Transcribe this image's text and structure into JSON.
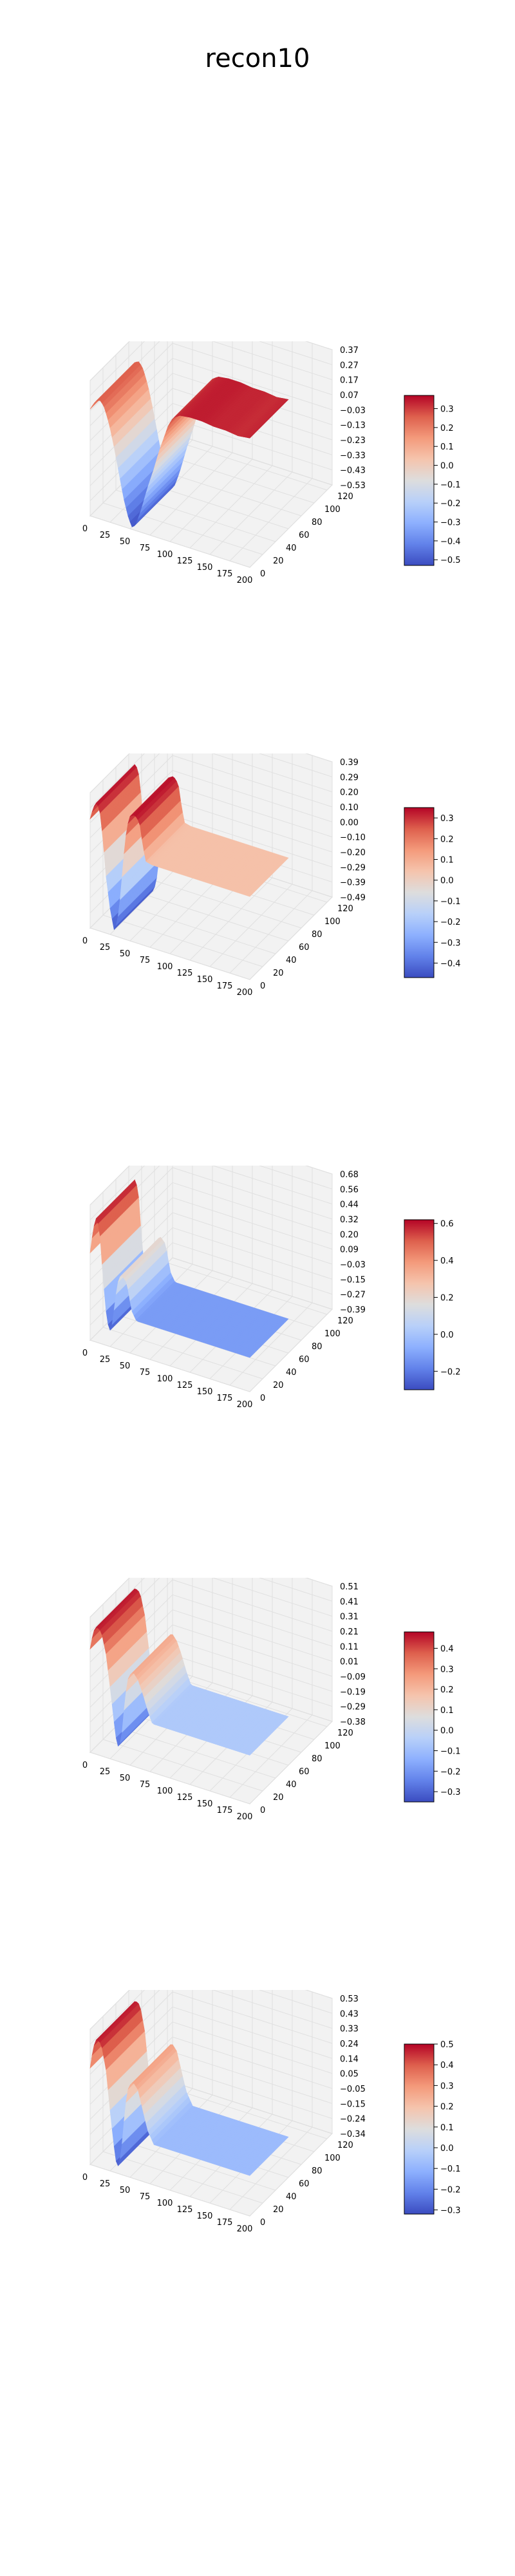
{
  "figure": {
    "title": "recon10"
  },
  "chart_data": [
    {
      "type": "surface",
      "colormap": "coolwarm",
      "x_ticks": [
        0,
        25,
        50,
        75,
        100,
        125,
        150,
        175,
        200
      ],
      "y_ticks": [
        0,
        20,
        40,
        60,
        80,
        100,
        120
      ],
      "xlim": [
        0,
        200
      ],
      "ylim": [
        0,
        128
      ],
      "zlim": [
        -0.53,
        0.37
      ],
      "z_ticks": [
        "0.37",
        "0.27",
        "0.17",
        "0.07",
        "−0.03",
        "−0.13",
        "−0.23",
        "−0.33",
        "−0.43",
        "−0.53"
      ],
      "colorbar_range": [
        -0.53,
        0.37
      ],
      "colorbar_ticks": [
        "0.3",
        "0.2",
        "0.1",
        "0.0",
        "−0.1",
        "−0.2",
        "−0.3",
        "−0.4",
        "−0.5"
      ],
      "profile": [
        [
          0,
          0.18
        ],
        [
          4,
          0.22
        ],
        [
          8,
          0.25
        ],
        [
          13,
          0.26
        ],
        [
          18,
          0.22
        ],
        [
          24,
          0.12
        ],
        [
          30,
          -0.02
        ],
        [
          36,
          -0.18
        ],
        [
          42,
          -0.34
        ],
        [
          48,
          -0.46
        ],
        [
          53,
          -0.52
        ],
        [
          58,
          -0.48
        ],
        [
          64,
          -0.38
        ],
        [
          72,
          -0.22
        ],
        [
          80,
          -0.08
        ],
        [
          86,
          0.04
        ],
        [
          92,
          0.14
        ],
        [
          98,
          0.24
        ],
        [
          104,
          0.3
        ],
        [
          112,
          0.33
        ],
        [
          125,
          0.34
        ],
        [
          140,
          0.34
        ],
        [
          155,
          0.33
        ],
        [
          170,
          0.33
        ],
        [
          185,
          0.32
        ],
        [
          200,
          0.33
        ]
      ],
      "ridge_y_range": [
        0,
        60
      ]
    },
    {
      "type": "surface",
      "colormap": "coolwarm",
      "x_ticks": [
        0,
        25,
        50,
        75,
        100,
        125,
        150,
        175,
        200
      ],
      "y_ticks": [
        0,
        20,
        40,
        60,
        80,
        100,
        120
      ],
      "xlim": [
        0,
        200
      ],
      "ylim": [
        0,
        128
      ],
      "zlim": [
        -0.49,
        0.39
      ],
      "z_ticks": [
        "0.39",
        "0.29",
        "0.20",
        "0.10",
        "0.00",
        "−0.10",
        "−0.20",
        "−0.29",
        "−0.39",
        "−0.49"
      ],
      "colorbar_range": [
        -0.47,
        0.35
      ],
      "colorbar_ticks": [
        "0.3",
        "0.2",
        "0.1",
        "0.0",
        "−0.1",
        "−0.2",
        "−0.3",
        "−0.4"
      ],
      "profile": [
        [
          0,
          0.22
        ],
        [
          4,
          0.3
        ],
        [
          8,
          0.34
        ],
        [
          12,
          0.3
        ],
        [
          16,
          0.12
        ],
        [
          20,
          -0.12
        ],
        [
          25,
          -0.32
        ],
        [
          30,
          -0.45
        ],
        [
          34,
          -0.4
        ],
        [
          38,
          -0.22
        ],
        [
          42,
          0.04
        ],
        [
          46,
          0.24
        ],
        [
          50,
          0.32
        ],
        [
          56,
          0.34
        ],
        [
          62,
          0.3
        ],
        [
          66,
          0.16
        ],
        [
          70,
          0.06
        ],
        [
          78,
          0.05
        ],
        [
          100,
          0.05
        ],
        [
          130,
          0.05
        ],
        [
          160,
          0.05
        ],
        [
          200,
          0.05
        ]
      ],
      "ridge_y_range": [
        0,
        60
      ]
    },
    {
      "type": "surface",
      "colormap": "coolwarm",
      "x_ticks": [
        0,
        25,
        50,
        75,
        100,
        125,
        150,
        175,
        200
      ],
      "y_ticks": [
        0,
        20,
        40,
        60,
        80,
        100,
        120
      ],
      "xlim": [
        0,
        200
      ],
      "ylim": [
        0,
        128
      ],
      "zlim": [
        -0.39,
        0.68
      ],
      "z_ticks": [
        "0.68",
        "0.56",
        "0.44",
        "0.32",
        "0.20",
        "0.09",
        "−0.03",
        "−0.15",
        "−0.27",
        "−0.39"
      ],
      "colorbar_range": [
        -0.3,
        0.62
      ],
      "colorbar_ticks": [
        "0.6",
        "0.4",
        "0.2",
        "0.0",
        "−0.2"
      ],
      "profile": [
        [
          0,
          0.3
        ],
        [
          4,
          0.5
        ],
        [
          8,
          0.6
        ],
        [
          12,
          0.5
        ],
        [
          16,
          0.15
        ],
        [
          20,
          -0.12
        ],
        [
          24,
          -0.28
        ],
        [
          28,
          -0.2
        ],
        [
          32,
          0.02
        ],
        [
          36,
          0.18
        ],
        [
          40,
          0.2
        ],
        [
          46,
          0.16
        ],
        [
          52,
          -0.05
        ],
        [
          58,
          -0.12
        ],
        [
          70,
          -0.12
        ],
        [
          100,
          -0.12
        ],
        [
          140,
          -0.12
        ],
        [
          200,
          -0.12
        ]
      ],
      "ridge_y_range": [
        0,
        60
      ]
    },
    {
      "type": "surface",
      "colormap": "coolwarm",
      "x_ticks": [
        0,
        25,
        50,
        75,
        100,
        125,
        150,
        175,
        200
      ],
      "y_ticks": [
        0,
        20,
        40,
        60,
        80,
        100,
        120
      ],
      "xlim": [
        0,
        200
      ],
      "ylim": [
        0,
        128
      ],
      "zlim": [
        -0.38,
        0.51
      ],
      "z_ticks": [
        "0.51",
        "0.41",
        "0.31",
        "0.21",
        "0.11",
        "0.01",
        "−0.09",
        "−0.19",
        "−0.29",
        "−0.38"
      ],
      "colorbar_range": [
        -0.35,
        0.48
      ],
      "colorbar_ticks": [
        "0.4",
        "0.3",
        "0.2",
        "0.1",
        "0.0",
        "−0.1",
        "−0.2",
        "−0.3"
      ],
      "profile": [
        [
          0,
          0.3
        ],
        [
          4,
          0.42
        ],
        [
          8,
          0.46
        ],
        [
          14,
          0.44
        ],
        [
          20,
          0.3
        ],
        [
          26,
          0.05
        ],
        [
          32,
          -0.22
        ],
        [
          36,
          -0.3
        ],
        [
          40,
          -0.18
        ],
        [
          44,
          0.06
        ],
        [
          48,
          0.2
        ],
        [
          54,
          0.24
        ],
        [
          60,
          0.2
        ],
        [
          66,
          0.12
        ],
        [
          72,
          0.02
        ],
        [
          78,
          -0.06
        ],
        [
          90,
          -0.06
        ],
        [
          130,
          -0.06
        ],
        [
          200,
          -0.06
        ]
      ],
      "ridge_y_range": [
        0,
        60
      ]
    },
    {
      "type": "surface",
      "colormap": "coolwarm",
      "x_ticks": [
        0,
        25,
        50,
        75,
        100,
        125,
        150,
        175,
        200
      ],
      "y_ticks": [
        0,
        20,
        40,
        60,
        80,
        100,
        120
      ],
      "xlim": [
        0,
        200
      ],
      "ylim": [
        0,
        128
      ],
      "zlim": [
        -0.34,
        0.53
      ],
      "z_ticks": [
        "0.53",
        "0.43",
        "0.33",
        "0.24",
        "0.14",
        "0.05",
        "−0.05",
        "−0.15",
        "−0.24",
        "−0.34"
      ],
      "colorbar_range": [
        -0.32,
        0.5
      ],
      "colorbar_ticks": [
        "0.5",
        "0.4",
        "0.3",
        "0.2",
        "0.1",
        "0.0",
        "−0.1",
        "−0.2",
        "−0.3"
      ],
      "profile": [
        [
          0,
          0.28
        ],
        [
          4,
          0.42
        ],
        [
          8,
          0.48
        ],
        [
          14,
          0.46
        ],
        [
          20,
          0.3
        ],
        [
          26,
          0.0
        ],
        [
          32,
          -0.26
        ],
        [
          36,
          -0.3
        ],
        [
          40,
          -0.14
        ],
        [
          44,
          0.1
        ],
        [
          48,
          0.24
        ],
        [
          54,
          0.28
        ],
        [
          60,
          0.24
        ],
        [
          66,
          0.12
        ],
        [
          72,
          0.0
        ],
        [
          80,
          -0.08
        ],
        [
          100,
          -0.08
        ],
        [
          140,
          -0.08
        ],
        [
          200,
          -0.08
        ]
      ],
      "ridge_y_range": [
        0,
        60
      ]
    }
  ]
}
